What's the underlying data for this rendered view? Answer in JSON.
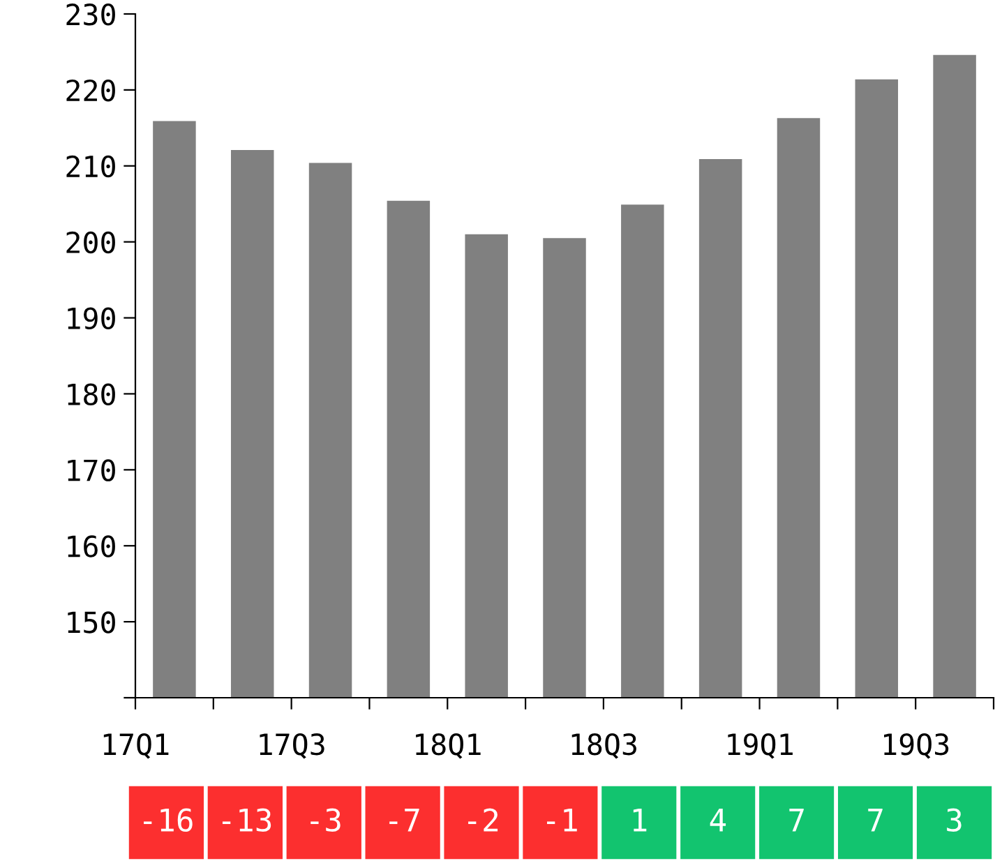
{
  "chart_data": [
    {
      "type": "bar",
      "categories": [
        "17Q1",
        null,
        "17Q3",
        null,
        "18Q1",
        null,
        "18Q3",
        null,
        "19Q1",
        null,
        "19Q3"
      ],
      "values": [
        215.9,
        212.1,
        210.4,
        205.4,
        201.0,
        200.5,
        204.9,
        210.9,
        216.3,
        221.4,
        224.6
      ],
      "color": "#808080",
      "ylim": [
        140,
        230
      ],
      "yticks": [
        {
          "value": 140,
          "label": null
        },
        150,
        160,
        170,
        180,
        190,
        200,
        210,
        220,
        230
      ],
      "grid": false,
      "legend": false
    },
    {
      "type": "heatmap",
      "categories": [
        null,
        null,
        null,
        null,
        null,
        null,
        null,
        null,
        null,
        null,
        null
      ],
      "y_categories": [
        null
      ],
      "cells": [
        [
          -16,
          -13,
          -3,
          -7,
          -2,
          -1,
          1,
          4,
          7,
          7,
          3
        ]
      ],
      "colors": [
        "#fc2f2f",
        "#fc2f2f",
        "#fc2f2f",
        "#fc2f2f",
        "#fc2f2f",
        "#fc2f2f",
        "#12c46f",
        "#12c46f",
        "#12c46f",
        "#12c46f",
        "#12c46f"
      ],
      "data_labels": true
    }
  ]
}
